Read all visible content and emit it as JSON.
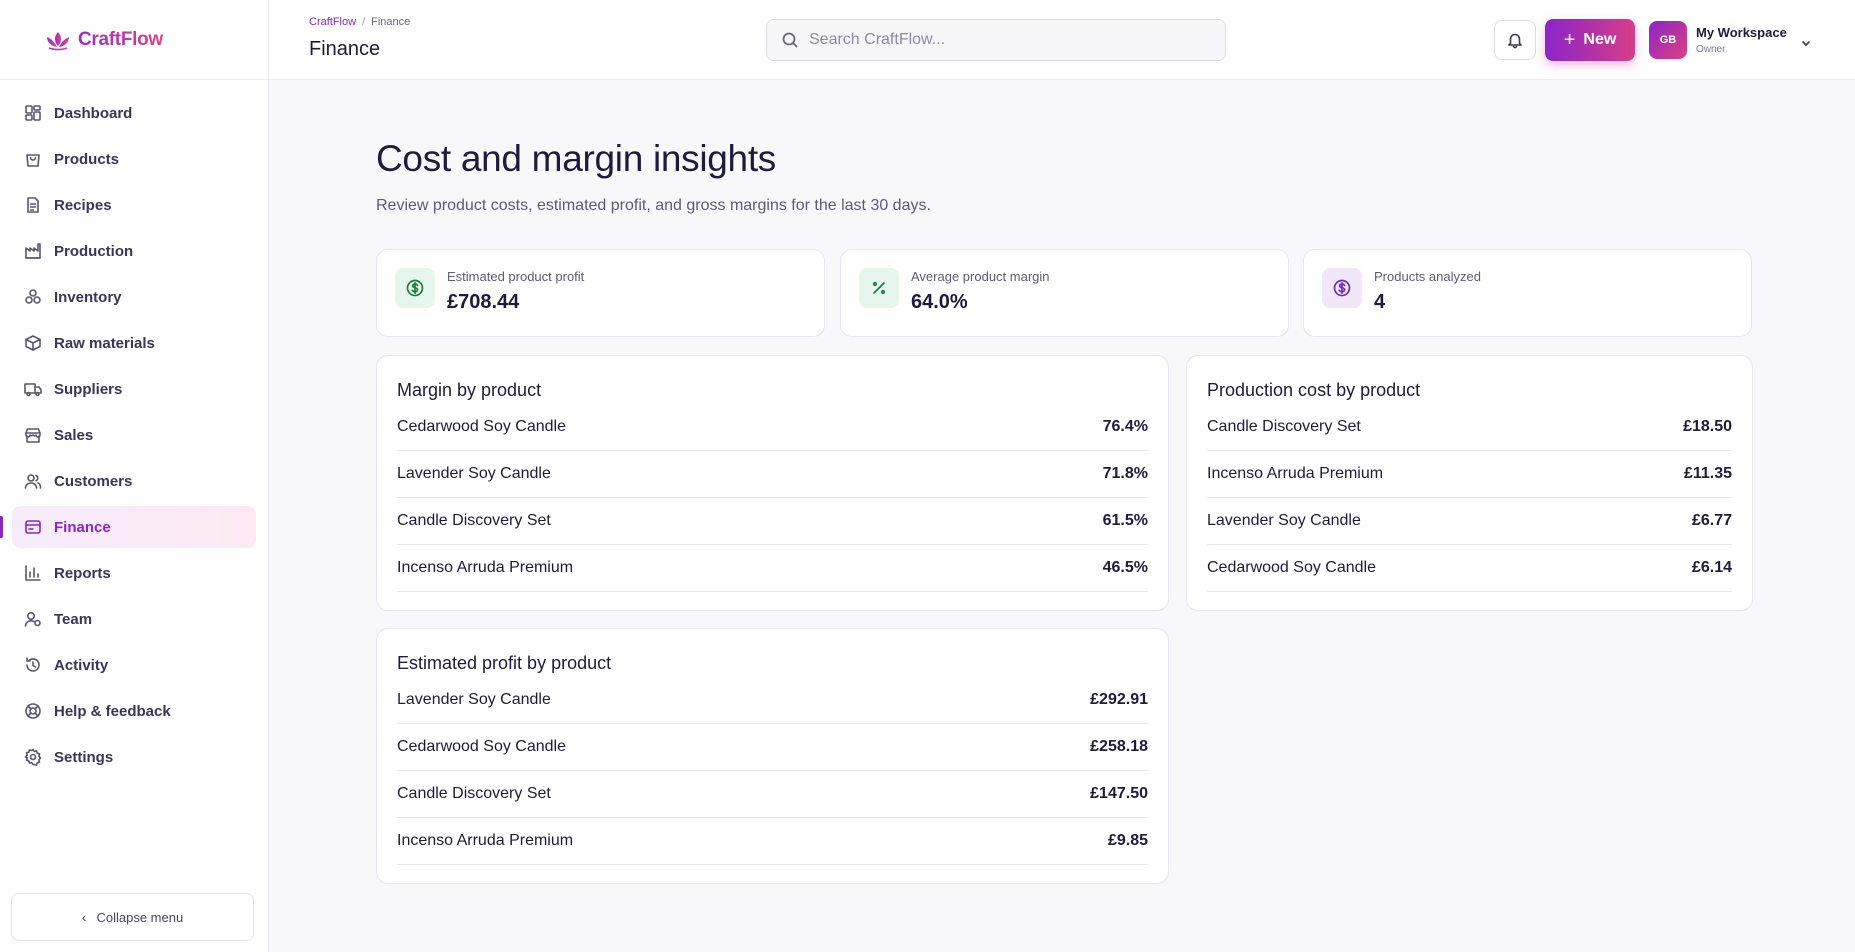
{
  "brand": {
    "name": "CraftFlow"
  },
  "sidebar": {
    "items": [
      {
        "label": "Dashboard",
        "icon": "dashboard-icon"
      },
      {
        "label": "Products",
        "icon": "shopping-bag-icon"
      },
      {
        "label": "Recipes",
        "icon": "document-icon"
      },
      {
        "label": "Production",
        "icon": "factory-icon"
      },
      {
        "label": "Inventory",
        "icon": "boxes-icon"
      },
      {
        "label": "Raw materials",
        "icon": "package-icon"
      },
      {
        "label": "Suppliers",
        "icon": "truck-icon"
      },
      {
        "label": "Sales",
        "icon": "store-icon"
      },
      {
        "label": "Customers",
        "icon": "users-icon"
      },
      {
        "label": "Finance",
        "icon": "wallet-icon",
        "active": true
      },
      {
        "label": "Reports",
        "icon": "bar-chart-icon"
      },
      {
        "label": "Team",
        "icon": "team-icon"
      },
      {
        "label": "Activity",
        "icon": "history-icon"
      },
      {
        "label": "Help & feedback",
        "icon": "lifebuoy-icon"
      },
      {
        "label": "Settings",
        "icon": "gear-icon"
      }
    ],
    "collapse_label": "Collapse menu"
  },
  "header": {
    "breadcrumb_root": "CraftFlow",
    "breadcrumb_sep": "/",
    "breadcrumb_current": "Finance",
    "title": "Finance",
    "search_placeholder": "Search CraftFlow...",
    "new_label": "New",
    "workspace_initials": "GB",
    "workspace_name": "My Workspace",
    "workspace_role": "Owner"
  },
  "main": {
    "title": "Cost and margin insights",
    "subtitle": "Review product costs, estimated profit, and gross margins for the last 30 days.",
    "stats": [
      {
        "label": "Estimated product profit",
        "value": "£708.44",
        "icon": "dollar-circle-icon",
        "color": "#1f7a4a",
        "bg": "#e6f6ec"
      },
      {
        "label": "Average product margin",
        "value": "64.0%",
        "icon": "percent-icon",
        "color": "#1f7a4a",
        "bg": "#e6f6ec"
      },
      {
        "label": "Products analyzed",
        "value": "4",
        "icon": "dollar-circle-icon",
        "color": "#6d2cb8",
        "bg": "#f0e8fa"
      }
    ],
    "margin_card": {
      "title": "Margin by product",
      "rows": [
        {
          "name": "Cedarwood Soy Candle",
          "value": "76.4%"
        },
        {
          "name": "Lavender Soy Candle",
          "value": "71.8%"
        },
        {
          "name": "Candle Discovery Set",
          "value": "61.5%"
        },
        {
          "name": "Incenso Arruda Premium",
          "value": "46.5%"
        }
      ]
    },
    "cost_card": {
      "title": "Production cost by product",
      "rows": [
        {
          "name": "Candle Discovery Set",
          "value": "£18.50"
        },
        {
          "name": "Incenso Arruda Premium",
          "value": "£11.35"
        },
        {
          "name": "Lavender Soy Candle",
          "value": "£6.77"
        },
        {
          "name": "Cedarwood Soy Candle",
          "value": "£6.14"
        }
      ]
    },
    "profit_card": {
      "title": "Estimated profit by product",
      "rows": [
        {
          "name": "Lavender Soy Candle",
          "value": "£292.91"
        },
        {
          "name": "Cedarwood Soy Candle",
          "value": "£258.18"
        },
        {
          "name": "Candle Discovery Set",
          "value": "£147.50"
        },
        {
          "name": "Incenso Arruda Premium",
          "value": "£9.85"
        }
      ]
    }
  }
}
